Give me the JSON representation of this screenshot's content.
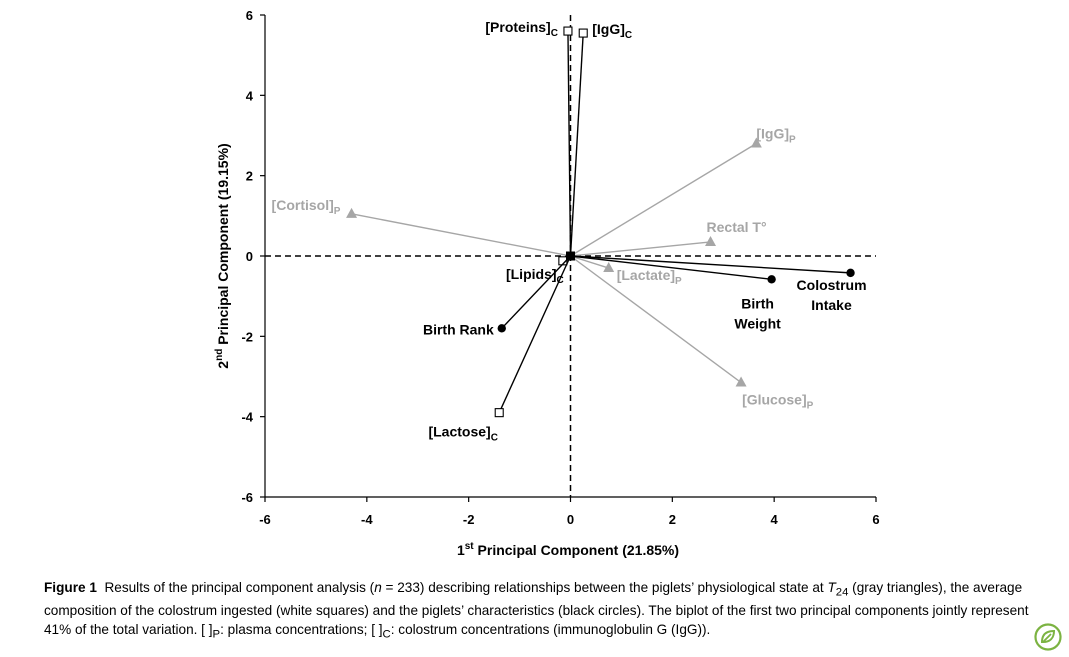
{
  "chart_data": {
    "type": "biplot",
    "xlabel": {
      "main": "1",
      "sup": "st",
      "rest": " Principal Component (21.85%)"
    },
    "ylabel": {
      "main": "2",
      "sup": "nd",
      "rest": " Principal Component (19.15%)"
    },
    "xlim": [
      -6,
      6
    ],
    "ylim": [
      -6,
      6
    ],
    "x_ticks": [
      "-6",
      "-4",
      "-2",
      "0",
      "2",
      "4",
      "6"
    ],
    "y_ticks": [
      "6",
      "4",
      "2",
      "0",
      "-2",
      "-4",
      "-6"
    ],
    "reference_lines": "dashed at x=0 and y=0",
    "groups": {
      "plasma": {
        "marker": "gray-triangle",
        "color": "#a6a6a6"
      },
      "colostrum": {
        "marker": "white-square",
        "color": "#000000"
      },
      "characteristics": {
        "marker": "black-circle",
        "color": "#000000"
      }
    },
    "vectors": [
      {
        "group": "colostrum",
        "label": "[Proteins]",
        "sub": "C",
        "x": -0.05,
        "y": 5.6
      },
      {
        "group": "colostrum",
        "label": "[IgG]",
        "sub": "C",
        "x": 0.25,
        "y": 5.55
      },
      {
        "group": "colostrum",
        "label": "[Lipids]",
        "sub": "C",
        "x": -0.15,
        "y": -0.12
      },
      {
        "group": "colostrum",
        "label": "[Lactose]",
        "sub": "C",
        "x": -1.4,
        "y": -3.9
      },
      {
        "group": "plasma",
        "label": "[IgG]",
        "sub": "P",
        "x": 3.65,
        "y": 2.8
      },
      {
        "group": "plasma",
        "label": "[Cortisol]",
        "sub": "P",
        "x": -4.3,
        "y": 1.05
      },
      {
        "group": "plasma",
        "label": "Rectal T°",
        "sub": "",
        "x": 2.75,
        "y": 0.35
      },
      {
        "group": "plasma",
        "label": "[Lactate]",
        "sub": "P",
        "x": 0.75,
        "y": -0.3
      },
      {
        "group": "plasma",
        "label": "[Glucose]",
        "sub": "P",
        "x": 3.35,
        "y": -3.15
      },
      {
        "group": "characteristics",
        "label": "Colostrum Intake",
        "sub": "",
        "x": 5.5,
        "y": -0.42
      },
      {
        "group": "characteristics",
        "label": "Birth Weight",
        "sub": "",
        "x": 3.95,
        "y": -0.58
      },
      {
        "group": "characteristics",
        "label": "Birth Rank",
        "sub": "",
        "x": -1.35,
        "y": -1.8
      }
    ]
  },
  "caption": {
    "title": "Figure 1",
    "p1": "Results of the principal component analysis (",
    "n_var": "n",
    "p2": " = 233) describing relationships between the piglets’ physiological state at ",
    "t_var": "T",
    "t_sub": "24",
    "p3": " (gray triangles), the average composition of the colostrum ingested (white squares) and the piglets’ characteristics (black circles). The biplot of the first two principal components jointly represent 41% of the total variation. [ ]",
    "p_sub": "P",
    "p4": ": plasma concentrations; [ ]",
    "c_sub": "C",
    "p5": ": colostrum concentrations (immunoglobulin G (IgG))."
  },
  "logo": {
    "name": "leaf-logo-icon",
    "color": "#7cb342"
  }
}
